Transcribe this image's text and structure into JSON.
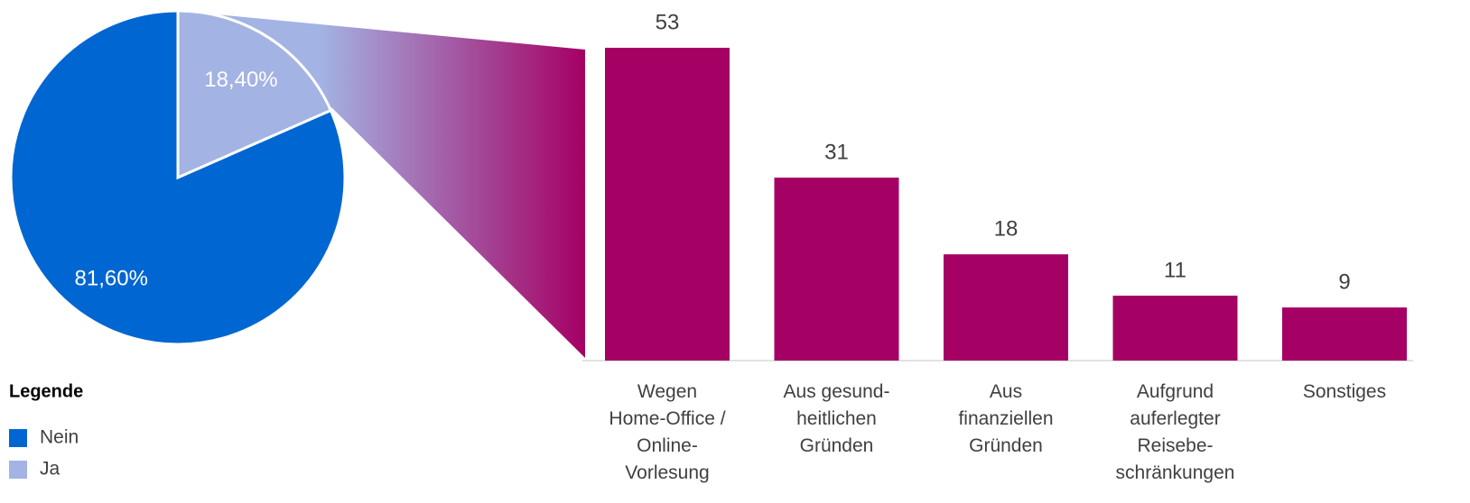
{
  "chart_data": [
    {
      "type": "pie",
      "legend_title": "Legende",
      "categories": [
        "Nein",
        "Ja"
      ],
      "values": [
        81.6,
        18.4
      ],
      "value_labels": [
        "81,60%",
        "18,40%"
      ],
      "colors": [
        "#0066d1",
        "#a3b3e3"
      ],
      "legend": "bottom-left"
    },
    {
      "type": "bar",
      "categories": [
        "Wegen\nHome-Office /\nOnline-\nVorlesung",
        "Aus gesund-\nheitlichen\nGründen",
        "Aus\nfinanziellen\nGründen",
        "Aufgrund\nauferlegter\nReisebe-\nschränkungen",
        "Sonstiges"
      ],
      "values": [
        53,
        31,
        18,
        11,
        9
      ],
      "color": "#a50064"
    }
  ]
}
